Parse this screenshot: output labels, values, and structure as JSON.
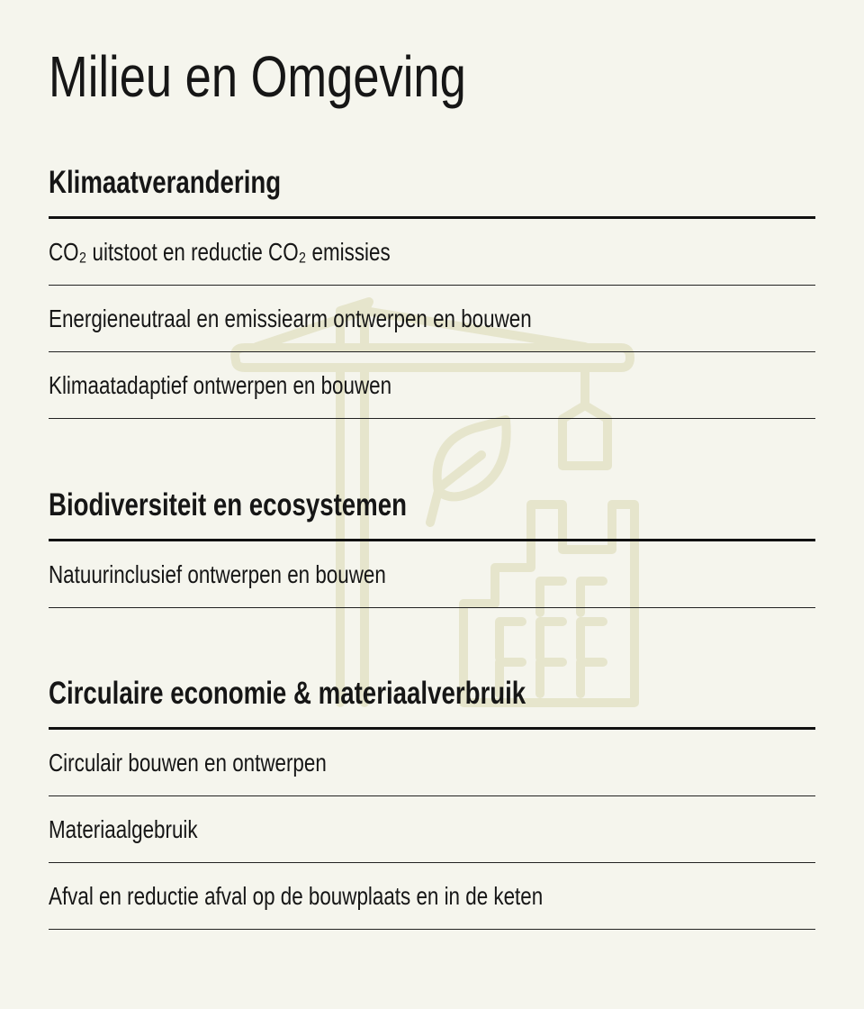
{
  "page": {
    "title": "Milieu en Omgeving"
  },
  "illustration": {
    "icon": "crane-building-leaf-icon",
    "color": "#e6e5cc"
  },
  "sections": [
    {
      "heading": "Klimaatverandering",
      "items": [
        "CO₂ uitstoot en reductie CO₂ emissies",
        "Energieneutraal en emissiearm ontwerpen en bouwen",
        "Klimaatadaptief ontwerpen en bouwen"
      ]
    },
    {
      "heading": "Biodiversiteit en ecosystemen",
      "items": [
        "Natuurinclusief ontwerpen en bouwen"
      ]
    },
    {
      "heading": "Circulaire economie & materiaalverbruik",
      "items": [
        "Circulair bouwen en ontwerpen",
        "Materiaalgebruik",
        "Afval en reductie afval op de bouwplaats en in de keten"
      ]
    }
  ]
}
